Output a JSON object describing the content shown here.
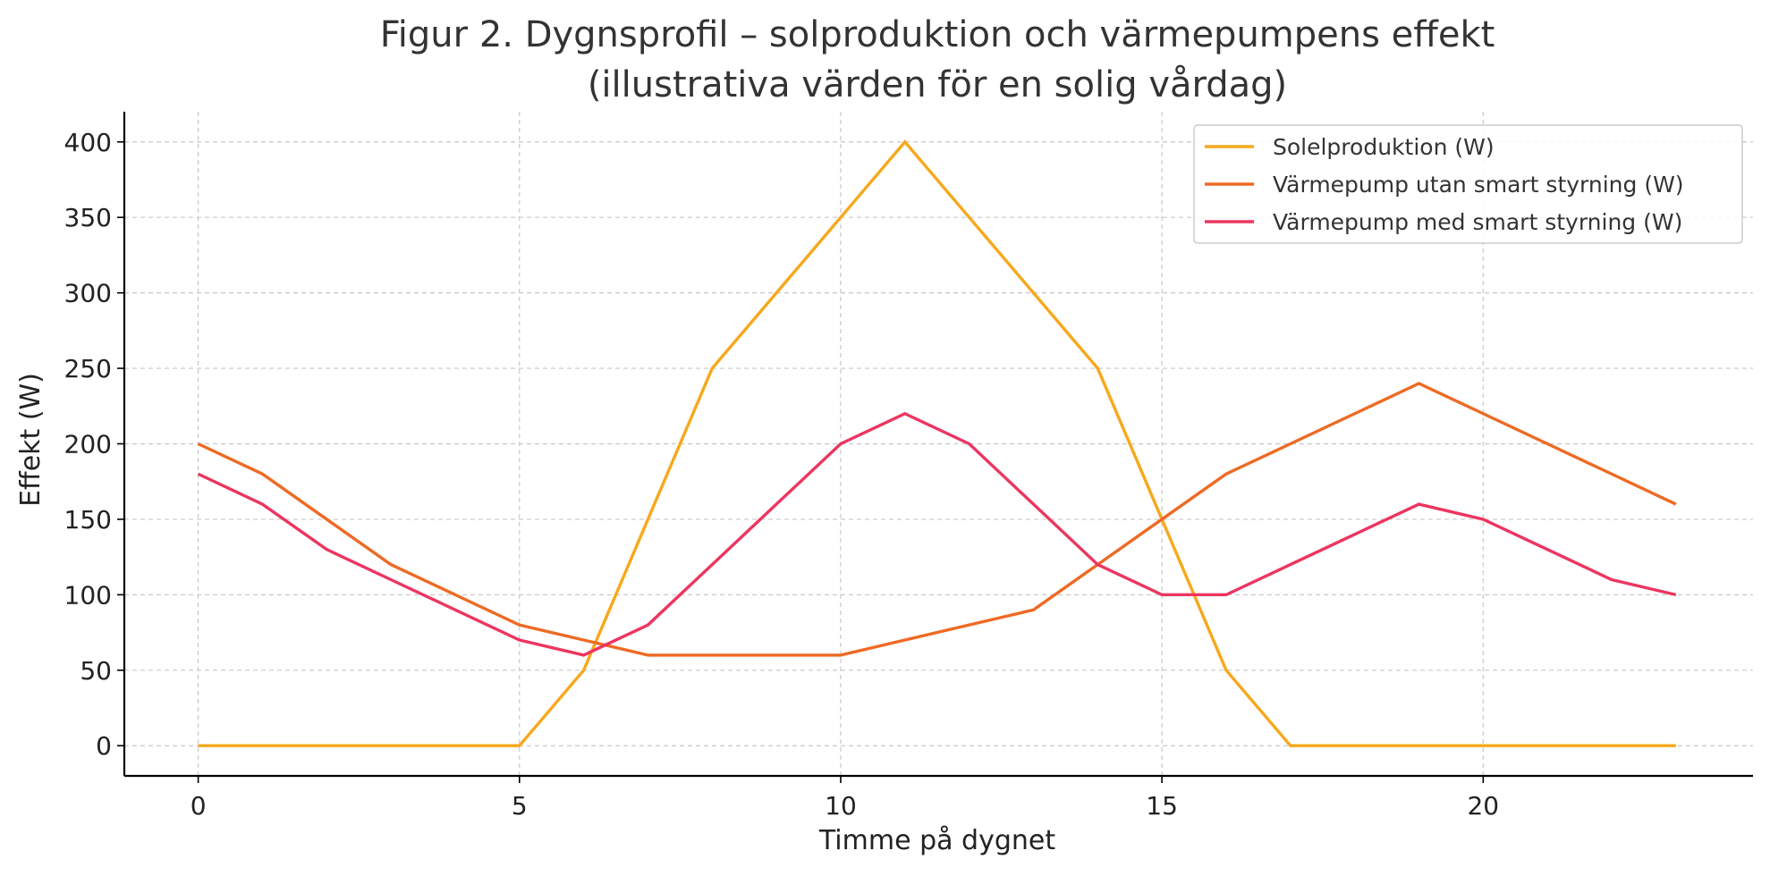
{
  "chart_data": {
    "type": "line",
    "title": "Figur 2. Dygnsprofil – solproduktion och värmepumpens effekt",
    "subtitle": "(illustrativa värden för en solig vårdag)",
    "xlabel": "Timme på dygnet",
    "ylabel": "Effekt (W)",
    "x": [
      0,
      1,
      2,
      3,
      4,
      5,
      6,
      7,
      8,
      9,
      10,
      11,
      12,
      13,
      14,
      15,
      16,
      17,
      18,
      19,
      20,
      21,
      22,
      23
    ],
    "xlim": [
      -1.15,
      24.2
    ],
    "ylim": [
      -20,
      420
    ],
    "xticks": [
      0,
      5,
      10,
      15,
      20
    ],
    "yticks": [
      0,
      50,
      100,
      150,
      200,
      250,
      300,
      350,
      400
    ],
    "grid": true,
    "legend_position": "top-right",
    "series": [
      {
        "name": "Solelproduktion (W)",
        "color": "#f7a81b",
        "values": [
          0,
          0,
          0,
          0,
          0,
          0,
          50,
          150,
          250,
          300,
          350,
          400,
          350,
          300,
          250,
          150,
          50,
          0,
          0,
          0,
          0,
          0,
          0,
          0
        ]
      },
      {
        "name": "Värmepump utan smart styrning (W)",
        "color": "#ee6a24",
        "values": [
          200,
          180,
          150,
          120,
          100,
          80,
          70,
          60,
          60,
          60,
          60,
          70,
          80,
          90,
          120,
          150,
          180,
          200,
          220,
          240,
          220,
          200,
          180,
          160
        ]
      },
      {
        "name": "Värmepump med smart styrning (W)",
        "color": "#ec3560",
        "values": [
          180,
          160,
          130,
          110,
          90,
          70,
          60,
          80,
          120,
          160,
          200,
          220,
          200,
          160,
          120,
          100,
          100,
          120,
          140,
          160,
          150,
          130,
          110,
          100
        ]
      }
    ]
  }
}
